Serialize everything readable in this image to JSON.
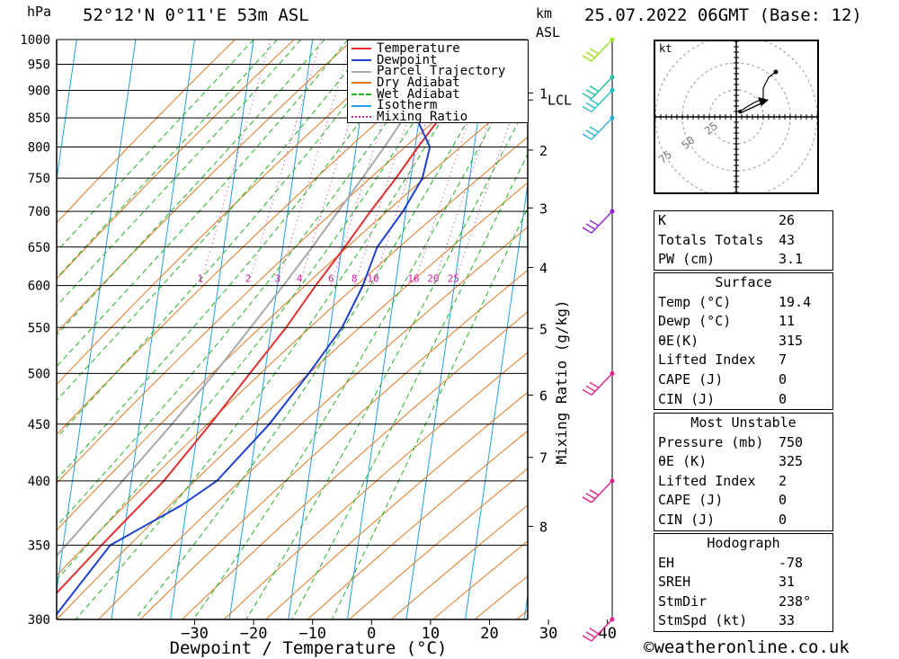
{
  "header": {
    "pressure_unit": "hPa",
    "location": "52°12'N  0°11'E  53m  ASL",
    "km_label": "km",
    "asl_label": "ASL",
    "datetime": "25.07.2022  06GMT  (Base: 12)"
  },
  "footer": {
    "copyright": "©weatheronline.co.uk"
  },
  "chart_data": {
    "type": "line",
    "title": "",
    "xlabel": "Dewpoint / Temperature (°C)",
    "ylabel": "hPa",
    "y2label": "Mixing Ratio (g/kg)",
    "xlim": [
      -40,
      40
    ],
    "ylim": [
      1000,
      300
    ],
    "y_log_scale": true,
    "x_ticks": [
      -30,
      -20,
      -10,
      0,
      10,
      20,
      30,
      40
    ],
    "pressure_levels": [
      300,
      350,
      400,
      450,
      500,
      550,
      600,
      650,
      700,
      750,
      800,
      850,
      900,
      950,
      1000
    ],
    "km_ticks": [
      {
        "km": 8,
        "p": 364
      },
      {
        "km": 7,
        "p": 420
      },
      {
        "km": 6,
        "p": 478
      },
      {
        "km": 5,
        "p": 549
      },
      {
        "km": 4,
        "p": 623
      },
      {
        "km": 3,
        "p": 705
      },
      {
        "km": 2,
        "p": 795
      },
      {
        "km": 1,
        "p": 895
      }
    ],
    "lcl_label": "LCL",
    "lcl_pressure": 882,
    "mixing_ratio_labels": [
      "1",
      "2",
      "3",
      "4",
      "6",
      "8",
      "10",
      "16",
      "20",
      "25"
    ],
    "mixing_ratio_values": [
      1,
      2,
      3,
      4,
      6,
      8,
      10,
      16,
      20,
      25
    ],
    "legend": [
      "Temperature",
      "Dewpoint",
      "Parcel Trajectory",
      "Dry Adiabat",
      "Wet Adiabat",
      "Isotherm",
      "Mixing Ratio"
    ],
    "legend_position": "top",
    "colors": {
      "temperature": "#e03030",
      "dewpoint": "#2040d0",
      "parcel": "#a8a8a8",
      "dry_adiabat": "#e07820",
      "wet_adiabat": "#20b020",
      "isotherm": "#20a0e0",
      "mixing_ratio": "#d020a0"
    },
    "series": [
      {
        "name": "Temperature",
        "points": [
          [
            1000,
            19.4
          ],
          [
            950,
            17.5
          ],
          [
            900,
            15.5
          ],
          [
            850,
            13.5
          ],
          [
            800,
            10.5
          ],
          [
            750,
            7.5
          ],
          [
            700,
            4.0
          ],
          [
            650,
            0.5
          ],
          [
            600,
            -3.5
          ],
          [
            550,
            -7.5
          ],
          [
            500,
            -12.5
          ],
          [
            450,
            -18.0
          ],
          [
            400,
            -24.5
          ],
          [
            350,
            -33.5
          ],
          [
            300,
            -43.5
          ]
        ]
      },
      {
        "name": "Dewpoint",
        "points": [
          [
            1000,
            11.0
          ],
          [
            950,
            10.5
          ],
          [
            900,
            8.0
          ],
          [
            870,
            8.5
          ],
          [
            850,
            9.5
          ],
          [
            800,
            12.5
          ],
          [
            750,
            12.0
          ],
          [
            700,
            9.5
          ],
          [
            650,
            6.0
          ],
          [
            600,
            4.5
          ],
          [
            550,
            2.0
          ],
          [
            500,
            -2.5
          ],
          [
            450,
            -8.0
          ],
          [
            400,
            -15.5
          ],
          [
            380,
            -21.0
          ],
          [
            350,
            -32.0
          ],
          [
            300,
            -40.0
          ]
        ]
      },
      {
        "name": "Parcel Trajectory",
        "points": [
          [
            1000,
            19.4
          ],
          [
            950,
            14.6
          ],
          [
            900,
            10.2
          ],
          [
            850,
            7.4
          ],
          [
            800,
            4.8
          ],
          [
            750,
            1.8
          ],
          [
            700,
            -1.5
          ],
          [
            650,
            -5.0
          ],
          [
            600,
            -9.0
          ],
          [
            550,
            -13.5
          ],
          [
            500,
            -18.5
          ],
          [
            450,
            -24.5
          ],
          [
            400,
            -31.5
          ],
          [
            350,
            -39.5
          ],
          [
            300,
            -49.0
          ]
        ]
      }
    ],
    "wind_barbs": [
      {
        "p": 300,
        "color": "#e0208c"
      },
      {
        "p": 400,
        "color": "#e0208c"
      },
      {
        "p": 500,
        "color": "#e0208c"
      },
      {
        "p": 700,
        "color": "#9020d0"
      },
      {
        "p": 850,
        "color": "#20b0d0"
      },
      {
        "p": 900,
        "color": "#20c0c0"
      },
      {
        "p": 925,
        "color": "#20c0a0"
      },
      {
        "p": 1000,
        "color": "#a0e020"
      }
    ],
    "hodograph": {
      "unit_label": "kt",
      "ring_labels": [
        "25",
        "50",
        "75"
      ]
    }
  },
  "indices": {
    "k": {
      "label": "K",
      "value": "26"
    },
    "tt": {
      "label": "Totals Totals",
      "value": "43"
    },
    "pw": {
      "label": "PW (cm)",
      "value": "3.1"
    }
  },
  "surface": {
    "title": "Surface",
    "temp": {
      "label": "Temp (°C)",
      "value": "19.4"
    },
    "dewp": {
      "label": "Dewp (°C)",
      "value": "11"
    },
    "theta_e": {
      "label": "θE(K)",
      "value": "315"
    },
    "li": {
      "label": "Lifted Index",
      "value": "7"
    },
    "cape": {
      "label": "CAPE (J)",
      "value": "0"
    },
    "cin": {
      "label": "CIN (J)",
      "value": "0"
    }
  },
  "most_unstable": {
    "title": "Most Unstable",
    "pressure": {
      "label": "Pressure (mb)",
      "value": "750"
    },
    "theta_e": {
      "label": "θE (K)",
      "value": "325"
    },
    "li": {
      "label": "Lifted Index",
      "value": "2"
    },
    "cape": {
      "label": "CAPE (J)",
      "value": "0"
    },
    "cin": {
      "label": "CIN (J)",
      "value": "0"
    }
  },
  "hodograph_table": {
    "title": "Hodograph",
    "eh": {
      "label": "EH",
      "value": "-78"
    },
    "sreh": {
      "label": "SREH",
      "value": "31"
    },
    "stmdir": {
      "label": "StmDir",
      "value": "238°"
    },
    "stmspd": {
      "label": "StmSpd (kt)",
      "value": "33"
    }
  }
}
